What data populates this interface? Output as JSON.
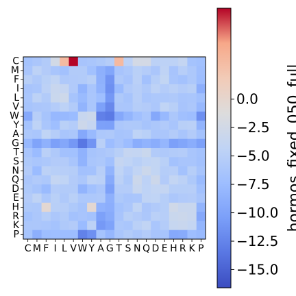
{
  "chart_data": {
    "type": "heatmap",
    "residues": [
      "C",
      "M",
      "F",
      "I",
      "L",
      "V",
      "W",
      "Y",
      "A",
      "G",
      "T",
      "S",
      "N",
      "Q",
      "D",
      "E",
      "H",
      "R",
      "K",
      "P"
    ],
    "values": [
      [
        -6.7,
        -6.2,
        -5.6,
        -2.5,
        3.3,
        8.0,
        -6.5,
        -6.3,
        -5.9,
        -5.3,
        3.4,
        -4.6,
        -2.3,
        -2.3,
        -4.7,
        -4.6,
        -4.6,
        -3.9,
        -6.7,
        -7.0
      ],
      [
        -6.4,
        -4.6,
        -5.5,
        -6.4,
        -6.9,
        -5.6,
        -5.6,
        -7.0,
        -8.8,
        -9.8,
        -6.5,
        -6.0,
        -4.9,
        -5.4,
        -6.2,
        -4.4,
        -6.5,
        -5.1,
        -6.0,
        -7.2
      ],
      [
        -5.0,
        -5.8,
        -4.9,
        -4.2,
        -5.8,
        -5.7,
        -5.6,
        -5.0,
        -8.7,
        -11.3,
        -5.8,
        -6.5,
        -4.8,
        -6.9,
        -5.2,
        -4.1,
        -6.4,
        -6.8,
        -6.0,
        -7.4
      ],
      [
        -6.5,
        -6.3,
        -4.7,
        -3.5,
        -3.8,
        -5.7,
        -8.4,
        -6.4,
        -8.5,
        -11.6,
        -7.7,
        -5.7,
        -5.1,
        -5.8,
        -4.6,
        -5.4,
        -4.8,
        -5.4,
        -5.0,
        -8.9
      ],
      [
        -6.3,
        -4.6,
        -5.6,
        -3.3,
        -2.9,
        -6.6,
        -7.7,
        -6.3,
        -7.3,
        -11.0,
        -5.9,
        -6.6,
        -5.1,
        -6.3,
        -6.0,
        -6.0,
        -5.8,
        -6.4,
        -6.3,
        -7.0
      ],
      [
        -6.6,
        -6.2,
        -6.1,
        -5.4,
        -4.6,
        -5.6,
        -8.4,
        -6.3,
        -10.3,
        -12.2,
        -6.2,
        -6.3,
        -5.3,
        -5.5,
        -6.1,
        -4.3,
        -5.0,
        -6.5,
        -6.1,
        -8.0
      ],
      [
        -9.5,
        -5.1,
        -6.6,
        -8.0,
        -7.9,
        -7.6,
        -3.6,
        -3.1,
        -12.8,
        -13.3,
        -9.6,
        -8.3,
        -7.1,
        -6.3,
        -9.6,
        -7.9,
        -6.1,
        -7.1,
        -7.4,
        -11.6
      ],
      [
        -6.7,
        -4.5,
        -6.3,
        -7.3,
        -4.9,
        -5.4,
        -3.0,
        -3.8,
        -10.3,
        -10.4,
        -6.1,
        -5.8,
        -5.9,
        -6.6,
        -6.1,
        -5.7,
        -6.4,
        -5.0,
        -4.8,
        -8.4
      ],
      [
        -6.0,
        -6.3,
        -4.3,
        -5.3,
        -6.4,
        -6.1,
        -9.6,
        -7.8,
        -6.0,
        -5.8,
        -6.6,
        -6.4,
        -4.5,
        -4.9,
        -6.2,
        -6.2,
        -5.5,
        -6.4,
        -5.5,
        -6.8
      ],
      [
        -8.0,
        -10.0,
        -8.7,
        -10.4,
        -9.7,
        -11.0,
        -13.5,
        -11.3,
        -4.8,
        -7.5,
        -6.5,
        -7.5,
        -9.1,
        -8.5,
        -9.1,
        -8.2,
        -10.4,
        -9.8,
        -9.1,
        -10.3
      ],
      [
        -6.4,
        -7.6,
        -4.8,
        -5.8,
        -6.9,
        -7.0,
        -8.6,
        -6.6,
        -6.2,
        -5.8,
        -5.0,
        -3.8,
        -3.9,
        -3.3,
        -5.6,
        -5.8,
        -5.6,
        -5.4,
        -6.4,
        -6.8
      ],
      [
        -5.9,
        -6.3,
        -6.0,
        -5.5,
        -5.5,
        -6.4,
        -8.5,
        -6.3,
        -6.0,
        -7.0,
        -3.8,
        -4.3,
        -4.9,
        -4.3,
        -4.1,
        -4.9,
        -6.8,
        -6.4,
        -6.4,
        -6.9
      ],
      [
        -5.5,
        -7.6,
        -4.7,
        -5.0,
        -5.1,
        -5.3,
        -6.9,
        -6.8,
        -5.1,
        -8.4,
        -4.3,
        -5.4,
        -4.2,
        -3.1,
        -4.1,
        -5.3,
        -5.1,
        -6.8,
        -5.2,
        -6.6
      ],
      [
        -6.2,
        -5.7,
        -6.0,
        -3.9,
        -4.3,
        -5.5,
        -6.1,
        -4.6,
        -4.8,
        -9.4,
        -4.7,
        -5.9,
        -3.1,
        -4.6,
        -3.0,
        -5.5,
        -4.0,
        -4.7,
        -5.9,
        -7.7
      ],
      [
        -5.9,
        -6.6,
        -7.7,
        -5.4,
        -5.6,
        -5.6,
        -8.4,
        -7.0,
        -6.2,
        -10.3,
        -5.4,
        -5.4,
        -3.6,
        -4.5,
        -4.0,
        -3.9,
        -5.2,
        -5.2,
        -5.1,
        -7.0
      ],
      [
        -5.5,
        -4.4,
        -6.0,
        -4.9,
        -5.8,
        -4.9,
        -6.0,
        -6.0,
        -5.8,
        -8.8,
        -5.9,
        -6.4,
        -6.3,
        -4.4,
        -4.3,
        -5.2,
        -6.1,
        -5.7,
        -5.5,
        -6.4
      ],
      [
        -5.9,
        -6.0,
        -0.4,
        -5.0,
        -5.1,
        -5.9,
        -6.6,
        -0.4,
        -8.6,
        -9.0,
        -6.7,
        -6.1,
        -4.3,
        -6.2,
        -5.7,
        -5.2,
        -2.7,
        -3.5,
        -3.4,
        -8.4
      ],
      [
        -6.7,
        -6.1,
        -5.2,
        -6.1,
        -5.6,
        -6.8,
        -6.5,
        -6.8,
        -10.3,
        -9.3,
        -6.5,
        -5.0,
        -5.5,
        -6.1,
        -4.8,
        -5.1,
        -3.3,
        -3.1,
        -3.4,
        -9.6
      ],
      [
        -6.1,
        -6.1,
        -6.3,
        -6.7,
        -5.8,
        -5.5,
        -7.6,
        -4.7,
        -10.9,
        -10.1,
        -6.0,
        -6.3,
        -4.8,
        -4.2,
        -6.3,
        -5.4,
        -3.7,
        -3.5,
        -3.9,
        -8.3
      ],
      [
        -6.6,
        -8.9,
        -7.4,
        -7.3,
        -7.5,
        -7.5,
        -12.7,
        -11.6,
        -6.7,
        -8.1,
        -6.3,
        -5.6,
        -6.2,
        -5.5,
        -6.5,
        -6.6,
        -9.5,
        -9.3,
        -7.4,
        -7.8
      ]
    ],
    "vmin": -16.6,
    "vmax": 8.0,
    "colormap": "coolwarm",
    "colorbar": {
      "ticks": [
        "0.0",
        "−2.5",
        "−5.0",
        "−7.5",
        "−10.0",
        "−12.5",
        "−15.0"
      ],
      "tick_values": [
        0,
        -2.5,
        -5.0,
        -7.5,
        -10.0,
        -12.5,
        -15.0
      ],
      "label": "hormos_fixed_050_full"
    },
    "grid": false
  }
}
